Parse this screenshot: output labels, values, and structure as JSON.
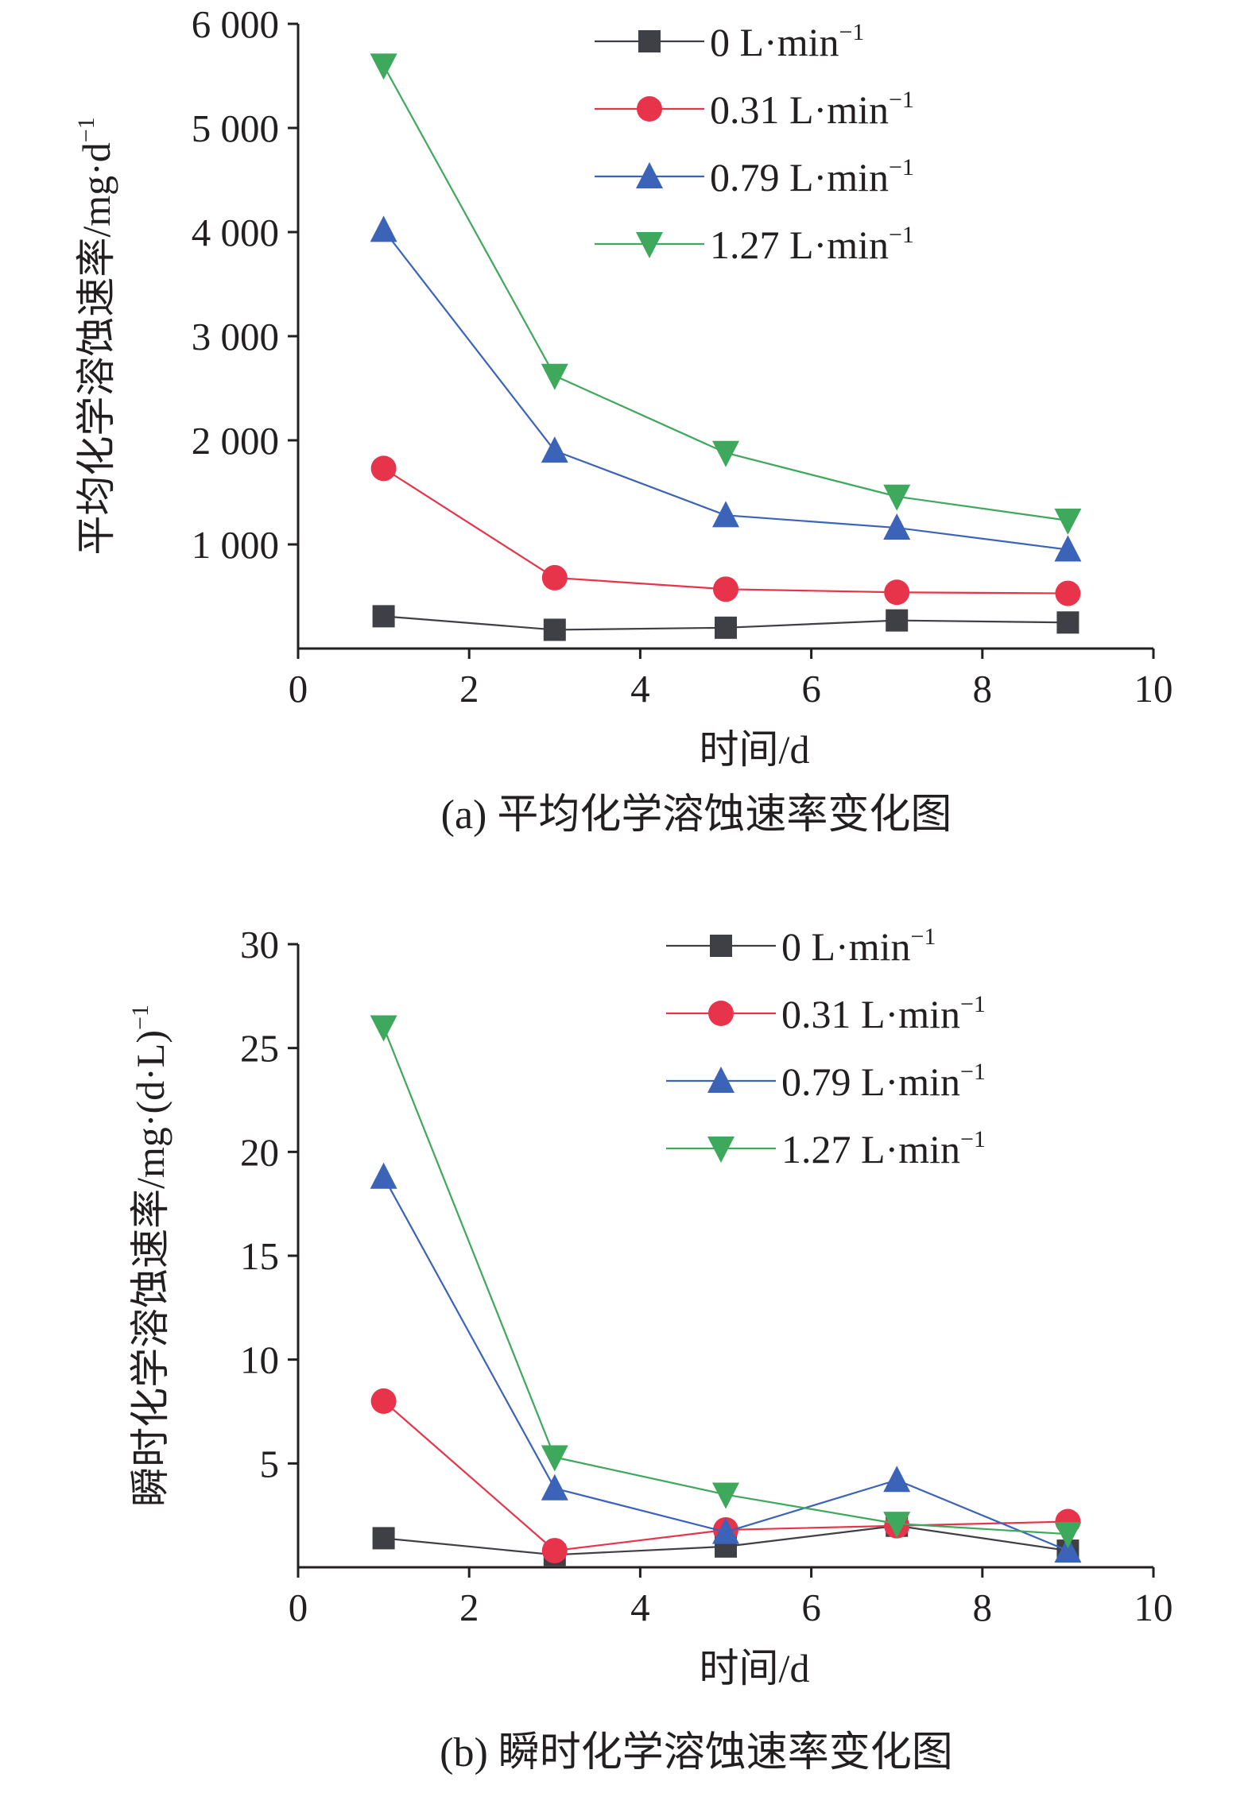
{
  "chart_data": [
    {
      "id": "a",
      "type": "line",
      "caption": "(a) 平均化学溶蚀速率变化图",
      "xlabel": "时间/d",
      "ylabel": "平均化学溶蚀速率/mg·d",
      "ylabel_sup": "−1",
      "xlim": [
        0,
        10
      ],
      "ylim": [
        0,
        6000
      ],
      "x_ticks": [
        0,
        2,
        4,
        6,
        8,
        10
      ],
      "x_tick_labels": [
        "0",
        "2",
        "4",
        "6",
        "8",
        "10"
      ],
      "y_ticks": [
        1000,
        2000,
        3000,
        4000,
        5000,
        6000
      ],
      "y_tick_labels": [
        "1 000",
        "2 000",
        "3 000",
        "4 000",
        "5 000",
        "6 000"
      ],
      "x": [
        1,
        3,
        5,
        7,
        9
      ],
      "legend_position": "top-right",
      "grid": false,
      "series": [
        {
          "name": "0 L·min",
          "name_sup": "−1",
          "marker": "square",
          "color": "#3f3f46",
          "values": [
            310,
            180,
            200,
            270,
            250
          ]
        },
        {
          "name": "0.31 L·min",
          "name_sup": "−1",
          "marker": "circle",
          "color": "#e8344a",
          "values": [
            1730,
            680,
            570,
            540,
            530
          ]
        },
        {
          "name": "0.79 L·min",
          "name_sup": "−1",
          "marker": "triangle-up",
          "color": "#3b63b8",
          "values": [
            4020,
            1900,
            1280,
            1160,
            950
          ]
        },
        {
          "name": "1.27 L·min",
          "name_sup": "−1",
          "marker": "triangle-down",
          "color": "#3ea85d",
          "values": [
            5600,
            2620,
            1880,
            1460,
            1230
          ]
        }
      ]
    },
    {
      "id": "b",
      "type": "line",
      "caption": "(b) 瞬时化学溶蚀速率变化图",
      "xlabel": "时间/d",
      "ylabel": "瞬时化学溶蚀速率/mg·(d·L)",
      "ylabel_sup": "−1",
      "xlim": [
        0,
        10
      ],
      "ylim": [
        0,
        30
      ],
      "x_ticks": [
        0,
        2,
        4,
        6,
        8,
        10
      ],
      "x_tick_labels": [
        "0",
        "2",
        "4",
        "6",
        "8",
        "10"
      ],
      "y_ticks": [
        5,
        10,
        15,
        20,
        25,
        30
      ],
      "y_tick_labels": [
        "5",
        "10",
        "15",
        "20",
        "25",
        "30"
      ],
      "x": [
        1,
        3,
        5,
        7,
        9
      ],
      "legend_position": "top-right",
      "grid": false,
      "series": [
        {
          "name": "0 L·min",
          "name_sup": "−1",
          "marker": "square",
          "color": "#3f3f46",
          "values": [
            1.4,
            0.6,
            1.0,
            2.0,
            0.8
          ]
        },
        {
          "name": "0.31 L·min",
          "name_sup": "−1",
          "marker": "circle",
          "color": "#e8344a",
          "values": [
            8.0,
            0.8,
            1.8,
            2.0,
            2.2
          ]
        },
        {
          "name": "0.79 L·min",
          "name_sup": "−1",
          "marker": "triangle-up",
          "color": "#3b63b8",
          "values": [
            18.8,
            3.8,
            1.7,
            4.2,
            0.8
          ]
        },
        {
          "name": "1.27 L·min",
          "name_sup": "−1",
          "marker": "triangle-down",
          "color": "#3ea85d",
          "values": [
            26.0,
            5.3,
            3.5,
            2.1,
            1.6
          ]
        }
      ]
    }
  ]
}
